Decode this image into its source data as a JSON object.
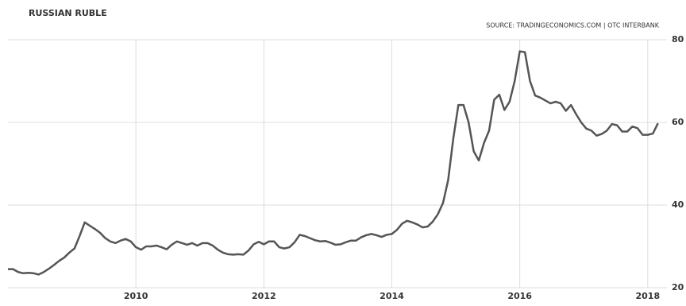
{
  "chart_data": {
    "type": "line",
    "title": "RUSSIAN RUBLE",
    "source": "SOURCE: TRADINGECONOMICS.COM | OTC INTERBANK",
    "x": [
      2008,
      2008.08,
      2008.16,
      2008.24,
      2008.32,
      2008.4,
      2008.48,
      2008.56,
      2008.64,
      2008.72,
      2008.8,
      2008.88,
      2008.96,
      2009.04,
      2009.12,
      2009.2,
      2009.28,
      2009.36,
      2009.44,
      2009.52,
      2009.6,
      2009.68,
      2009.76,
      2009.84,
      2009.92,
      2010,
      2010.08,
      2010.16,
      2010.24,
      2010.32,
      2010.4,
      2010.48,
      2010.56,
      2010.64,
      2010.72,
      2010.8,
      2010.88,
      2010.96,
      2011.04,
      2011.12,
      2011.2,
      2011.28,
      2011.36,
      2011.44,
      2011.52,
      2011.6,
      2011.68,
      2011.76,
      2011.84,
      2011.92,
      2012,
      2012.08,
      2012.16,
      2012.24,
      2012.32,
      2012.4,
      2012.48,
      2012.56,
      2012.64,
      2012.72,
      2012.8,
      2012.88,
      2012.96,
      2013.04,
      2013.12,
      2013.2,
      2013.28,
      2013.36,
      2013.44,
      2013.52,
      2013.6,
      2013.68,
      2013.76,
      2013.84,
      2013.92,
      2014,
      2014.08,
      2014.16,
      2014.24,
      2014.32,
      2014.4,
      2014.48,
      2014.56,
      2014.64,
      2014.72,
      2014.8,
      2014.88,
      2014.96,
      2015.04,
      2015.12,
      2015.2,
      2015.28,
      2015.36,
      2015.44,
      2015.52,
      2015.6,
      2015.68,
      2015.76,
      2015.84,
      2015.92,
      2016,
      2016.08,
      2016.16,
      2016.24,
      2016.32,
      2016.4,
      2016.48,
      2016.56,
      2016.64,
      2016.72,
      2016.8,
      2016.88,
      2016.96,
      2017.04,
      2017.12,
      2017.2,
      2017.28,
      2017.36,
      2017.44,
      2017.52,
      2017.6,
      2017.68,
      2017.76,
      2017.84,
      2017.92,
      2018,
      2018.08,
      2018.16
    ],
    "series": [
      {
        "name": "RUB",
        "color": "#555555",
        "values": [
          24.5,
          24.5,
          23.8,
          23.5,
          23.6,
          23.5,
          23.2,
          23.8,
          24.6,
          25.5,
          26.5,
          27.3,
          28.5,
          29.5,
          32.5,
          35.8,
          35,
          34.2,
          33.3,
          32,
          31.2,
          30.8,
          31.4,
          31.8,
          31.2,
          29.8,
          29.2,
          30,
          30,
          30.2,
          29.8,
          29.3,
          30.4,
          31.2,
          30.8,
          30.4,
          30.8,
          30.2,
          30.8,
          30.8,
          30.2,
          29.2,
          28.5,
          28.1,
          28,
          28.1,
          28,
          29,
          30.5,
          31.1,
          30.5,
          31.2,
          31.2,
          29.8,
          29.5,
          29.8,
          31,
          32.8,
          32.5,
          32,
          31.5,
          31.2,
          31.3,
          30.9,
          30.4,
          30.5,
          31,
          31.4,
          31.4,
          32.2,
          32.7,
          33,
          32.7,
          32.3,
          32.8,
          33,
          34,
          35.5,
          36.2,
          35.8,
          35.3,
          34.6,
          34.8,
          36,
          37.8,
          40.5,
          46,
          56,
          64.2,
          64.2,
          60,
          53,
          50.8,
          55,
          58,
          65.5,
          66.7,
          63,
          65,
          70,
          77.2,
          77,
          70,
          66.5,
          66,
          65.3,
          64.6,
          65,
          64.6,
          62.8,
          64.2,
          62,
          60,
          58.5,
          58,
          56.8,
          57.2,
          58,
          59.6,
          59.3,
          57.8,
          57.8,
          59,
          58.6,
          57,
          57,
          57.3,
          59.8
        ]
      }
    ],
    "xlim": [
      2008,
      2018.3
    ],
    "xticks": [
      2010,
      2012,
      2014,
      2016,
      2018
    ],
    "ylim": [
      20,
      80
    ],
    "yticks": [
      20,
      40,
      60,
      80
    ],
    "grid": true
  }
}
